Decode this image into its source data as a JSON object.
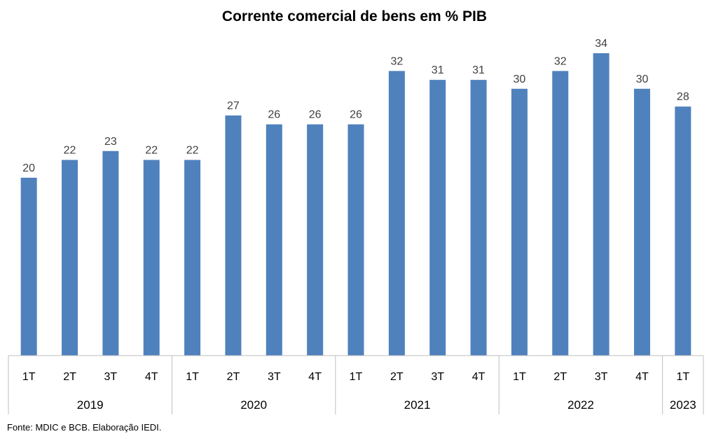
{
  "chart_data": {
    "type": "bar",
    "title": "Corrente comercial de bens em % PIB",
    "xlabel": "",
    "ylabel": "",
    "ylim": [
      0,
      40
    ],
    "grid": false,
    "legend": "none",
    "bar_color": "#4F81BD",
    "groups": [
      {
        "year": "2019",
        "quarters": [
          "1T",
          "2T",
          "3T",
          "4T"
        ],
        "values": [
          20,
          22,
          23,
          22
        ]
      },
      {
        "year": "2020",
        "quarters": [
          "1T",
          "2T",
          "3T",
          "4T"
        ],
        "values": [
          22,
          27,
          26,
          26
        ]
      },
      {
        "year": "2021",
        "quarters": [
          "1T",
          "2T",
          "3T",
          "4T"
        ],
        "values": [
          26,
          32,
          31,
          31
        ]
      },
      {
        "year": "2022",
        "quarters": [
          "1T",
          "2T",
          "3T",
          "4T"
        ],
        "values": [
          30,
          32,
          34,
          30
        ]
      },
      {
        "year": "2023",
        "quarters": [
          "1T"
        ],
        "values": [
          28
        ]
      }
    ]
  },
  "footnote": "Fonte: MDIC e BCB. Elaboração IEDI."
}
